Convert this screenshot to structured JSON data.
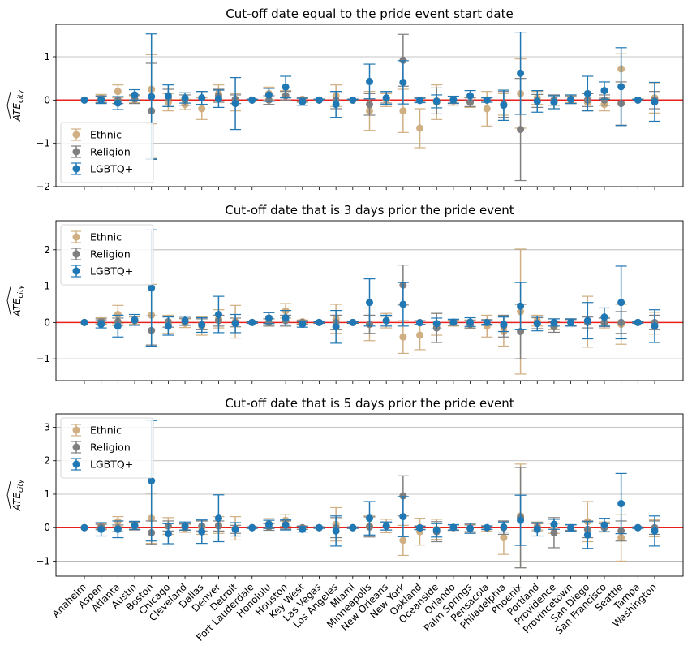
{
  "chart_data": [
    {
      "type": "scatter",
      "title": "Cut-off date equal to the pride event start date",
      "ylabel": "ATE_city",
      "ylim": [
        -2,
        1.75
      ],
      "yticks": [
        -2,
        -1,
        0,
        1
      ],
      "grid": "horizontal",
      "reference_line": {
        "y": 0,
        "color": "#e8201c"
      },
      "legend_position": "lower-left",
      "categories": [
        "Anaheim",
        "Aspen",
        "Atlanta",
        "Austin",
        "Boston",
        "Chicago",
        "Cleveland",
        "Dallas",
        "Denver",
        "Detroit",
        "Fort Lauderdale",
        "Honolulu",
        "Houston",
        "Key West",
        "Las Vegas",
        "Los Angeles",
        "Miami",
        "Minneapolis",
        "New Orleans",
        "New York",
        "Oakland",
        "Oceanside",
        "Orlando",
        "Palm Springs",
        "Pensacola",
        "Philadelphia",
        "Phoenix",
        "Portland",
        "Providence",
        "Provincetown",
        "San Diego",
        "San Francisco",
        "Seattle",
        "Tampa",
        "Washington"
      ],
      "series": [
        {
          "name": "Ethnic",
          "color": "#d0af83",
          "values": [
            0,
            0.05,
            0.2,
            0.02,
            0.25,
            -0.05,
            -0.1,
            -0.2,
            0.15,
            -0.05,
            0,
            0.15,
            0.1,
            0.02,
            0,
            0.1,
            0,
            -0.25,
            0,
            -0.25,
            -0.65,
            -0.05,
            -0.02,
            -0.05,
            -0.2,
            -0.1,
            0.15,
            0.05,
            -0.05,
            0.02,
            -0.05,
            -0.1,
            0.72,
            0,
            0.05
          ],
          "err": [
            0,
            0.08,
            0.15,
            0.08,
            0.8,
            0.2,
            0.12,
            0.25,
            0.2,
            0.2,
            0.02,
            0.15,
            0.12,
            0.05,
            0.02,
            0.25,
            0.02,
            0.45,
            0.15,
            0.5,
            0.45,
            0.4,
            0.1,
            0.12,
            0.4,
            0.25,
            0.8,
            0.15,
            0.15,
            0.08,
            0.2,
            0.15,
            0.35,
            0.02,
            0.35
          ]
        },
        {
          "name": "Religion",
          "color": "#7f7f7f",
          "values": [
            0,
            0.02,
            0,
            0.02,
            -0.25,
            0.05,
            0,
            0.05,
            0.1,
            0.02,
            0,
            0,
            0.1,
            0,
            0,
            0,
            0,
            -0.1,
            0.05,
            0.92,
            0,
            -0.02,
            0,
            -0.05,
            0,
            -0.1,
            -0.68,
            -0.02,
            0,
            0,
            0,
            0,
            -0.08,
            0,
            0
          ],
          "err": [
            0,
            0.08,
            0.08,
            0.1,
            1.1,
            0.2,
            0.12,
            0.15,
            0.15,
            0.1,
            0.02,
            0.1,
            0.1,
            0.05,
            0.02,
            0.2,
            0.02,
            0.25,
            0.12,
            0.6,
            0.05,
            0.3,
            0.08,
            0.1,
            0.05,
            0.3,
            1.18,
            0.15,
            0.12,
            0.08,
            0.15,
            0.12,
            0.5,
            0.02,
            0.2
          ]
        },
        {
          "name": "LGBTQ+",
          "color": "#1f77b4",
          "values": [
            0,
            0,
            -0.07,
            0.12,
            0.08,
            0.1,
            0.05,
            0.05,
            0.03,
            -0.08,
            0,
            0.12,
            0.3,
            -0.04,
            0,
            -0.1,
            0,
            0.43,
            0.05,
            0.41,
            -0.01,
            -0.03,
            0.01,
            0.1,
            0,
            -0.12,
            0.62,
            -0.03,
            -0.05,
            0.02,
            0.15,
            0.22,
            0.31,
            0,
            -0.04
          ]
        },
        {
          "name": "LGBTQ+ error",
          "color": "#1f77b4",
          "err": [
            0,
            0.08,
            0.15,
            0.12,
            1.45,
            0.25,
            0.12,
            0.15,
            0.2,
            0.6,
            0.02,
            0.15,
            0.25,
            0.08,
            0.02,
            0.3,
            0.02,
            0.4,
            0.15,
            0.5,
            0.05,
            0.15,
            0.08,
            0.12,
            0.05,
            0.35,
            0.95,
            0.25,
            0.15,
            0.1,
            0.4,
            0.2,
            0.9,
            0.02,
            0.45
          ]
        }
      ]
    },
    {
      "type": "scatter",
      "title": "Cut-off date that is 3 days prior the pride event",
      "ylabel": "ATE_city",
      "ylim": [
        -1.6,
        2.8
      ],
      "yticks": [
        -1,
        0,
        1,
        2
      ],
      "grid": "horizontal",
      "reference_line": {
        "y": 0,
        "color": "#e8201c"
      },
      "legend_position": "upper-left",
      "categories": [
        "Anaheim",
        "Aspen",
        "Atlanta",
        "Austin",
        "Boston",
        "Chicago",
        "Cleveland",
        "Dallas",
        "Denver",
        "Detroit",
        "Fort Lauderdale",
        "Honolulu",
        "Houston",
        "Key West",
        "Las Vegas",
        "Los Angeles",
        "Miami",
        "Minneapolis",
        "New Orleans",
        "New York",
        "Oakland",
        "Oceanside",
        "Orlando",
        "Palm Springs",
        "Pensacola",
        "Philadelphia",
        "Phoenix",
        "Portland",
        "Providence",
        "Provincetown",
        "San Diego",
        "San Francisco",
        "Seattle",
        "Tampa",
        "Washington"
      ],
      "series": [
        {
          "name": "Ethnic",
          "color": "#d0af83",
          "values": [
            0,
            0.05,
            0.22,
            0.05,
            0.2,
            -0.05,
            -0.02,
            -0.1,
            0.1,
            0.02,
            0,
            0.12,
            0.32,
            0.02,
            0,
            0.1,
            0,
            -0.05,
            0.05,
            -0.4,
            -0.35,
            -0.05,
            -0.02,
            -0.05,
            -0.1,
            -0.25,
            0.3,
            0.05,
            -0.05,
            0,
            0.02,
            -0.02,
            -0.05,
            0,
            -0.02
          ],
          "err": [
            0,
            0.08,
            0.25,
            0.1,
            0.85,
            0.25,
            0.12,
            0.25,
            0.25,
            0.45,
            0.02,
            0.15,
            0.2,
            0.05,
            0.02,
            0.4,
            0.02,
            0.45,
            0.2,
            0.45,
            0.4,
            0.3,
            0.08,
            0.12,
            0.3,
            0.4,
            1.72,
            0.15,
            0.15,
            0.1,
            0.7,
            0.15,
            0.55,
            0.02,
            0.3
          ]
        },
        {
          "name": "Religion",
          "color": "#7f7f7f",
          "values": [
            0,
            0.02,
            0.02,
            0.05,
            -0.22,
            0.02,
            0.02,
            -0.05,
            0.05,
            0,
            0,
            0,
            0.05,
            0,
            0,
            0,
            0,
            -0.05,
            0.05,
            1.03,
            0,
            -0.15,
            0,
            -0.05,
            0,
            -0.1,
            -0.25,
            -0.02,
            -0.12,
            0,
            0,
            0,
            0,
            0,
            0
          ],
          "err": [
            0,
            0.08,
            0.1,
            0.12,
            0.4,
            0.15,
            0.1,
            0.15,
            0.15,
            0.12,
            0.02,
            0.1,
            0.15,
            0.05,
            0.02,
            0.2,
            0.02,
            0.25,
            0.12,
            0.55,
            0.05,
            0.4,
            0.08,
            0.1,
            0.08,
            0.3,
            0.75,
            0.15,
            0.15,
            0.08,
            0.15,
            0.12,
            0.3,
            0.02,
            0.2
          ]
        },
        {
          "name": "LGBTQ+",
          "color": "#1f77b4",
          "values": [
            0,
            -0.05,
            -0.1,
            0.07,
            0.95,
            -0.1,
            0.05,
            -0.07,
            0.22,
            -0.03,
            0,
            0.12,
            0.13,
            -0.05,
            0,
            -0.12,
            0,
            0.55,
            0.05,
            0.5,
            -0.01,
            -0.03,
            0.01,
            0.01,
            0,
            -0.05,
            0.45,
            -0.03,
            0,
            0,
            0.05,
            0.15,
            0.55,
            0,
            -0.1
          ]
        },
        {
          "name": "LGBTQ+ error",
          "color": "#1f77b4",
          "err": [
            0,
            0.1,
            0.3,
            0.15,
            1.6,
            0.25,
            0.12,
            0.2,
            0.5,
            0.25,
            0.02,
            0.15,
            0.2,
            0.08,
            0.02,
            0.45,
            0.02,
            0.65,
            0.15,
            0.6,
            0.05,
            0.15,
            0.08,
            0.12,
            0.05,
            0.2,
            0.65,
            0.2,
            0.1,
            0.1,
            0.5,
            0.25,
            1.0,
            0.02,
            0.45
          ]
        }
      ]
    },
    {
      "type": "scatter",
      "title": "Cut-off date that is 5 days prior the pride event",
      "ylabel": "ATE_city",
      "ylim": [
        -1.45,
        3.4
      ],
      "yticks": [
        -1,
        0,
        1,
        2,
        3
      ],
      "grid": "horizontal",
      "reference_line": {
        "y": 0,
        "color": "#e8201c"
      },
      "legend_position": "upper-left",
      "categories": [
        "Anaheim",
        "Aspen",
        "Atlanta",
        "Austin",
        "Boston",
        "Chicago",
        "Cleveland",
        "Dallas",
        "Denver",
        "Detroit",
        "Fort Lauderdale",
        "Honolulu",
        "Houston",
        "Key West",
        "Las Vegas",
        "Los Angeles",
        "Miami",
        "Minneapolis",
        "New Orleans",
        "New York",
        "Oakland",
        "Oceanside",
        "Orlando",
        "Palm Springs",
        "Pensacola",
        "Philadelphia",
        "Phoenix",
        "Portland",
        "Providence",
        "Provincetown",
        "San Diego",
        "San Francisco",
        "Seattle",
        "Tampa",
        "Washington"
      ],
      "series": [
        {
          "name": "Ethnic",
          "color": "#d0af83",
          "values": [
            0,
            0.05,
            0.18,
            0.05,
            0.28,
            0.05,
            -0.02,
            0,
            0.08,
            -0.02,
            0,
            0.12,
            0.22,
            0,
            0,
            0.1,
            0,
            0.05,
            0.05,
            -0.38,
            -0.12,
            -0.05,
            0,
            -0.02,
            -0.02,
            -0.3,
            0.35,
            0.05,
            -0.02,
            0,
            0.18,
            0.02,
            -0.3,
            0,
            -0.02
          ],
          "err": [
            0,
            0.08,
            0.15,
            0.1,
            0.75,
            0.25,
            0.12,
            0.2,
            0.25,
            0.35,
            0.02,
            0.15,
            0.18,
            0.05,
            0.02,
            0.5,
            0.02,
            0.3,
            0.2,
            0.45,
            0.4,
            0.3,
            0.08,
            0.12,
            0.08,
            0.5,
            1.55,
            0.12,
            0.15,
            0.08,
            0.6,
            0.15,
            0.7,
            0.02,
            0.25
          ]
        },
        {
          "name": "Religion",
          "color": "#7f7f7f",
          "values": [
            0,
            0.02,
            -0.02,
            0.05,
            -0.15,
            0.05,
            0.02,
            0.05,
            0.05,
            -0.05,
            0,
            0.02,
            0.08,
            0,
            0,
            0,
            0,
            0.02,
            0.05,
            0.95,
            0,
            -0.12,
            0,
            -0.02,
            0,
            0,
            0.3,
            0,
            -0.15,
            0,
            -0.05,
            0,
            -0.1,
            0,
            0
          ],
          "err": [
            0,
            0.08,
            0.1,
            0.12,
            0.35,
            0.15,
            0.1,
            0.15,
            0.15,
            0.12,
            0.02,
            0.1,
            0.12,
            0.05,
            0.02,
            0.3,
            0.02,
            0.3,
            0.12,
            0.6,
            0.05,
            0.3,
            0.08,
            0.1,
            0.05,
            0.2,
            1.5,
            0.12,
            0.45,
            0.08,
            0.25,
            0.12,
            0.3,
            0.02,
            0.2
          ]
        },
        {
          "name": "LGBTQ+",
          "color": "#1f77b4",
          "values": [
            0,
            -0.05,
            -0.05,
            0.07,
            1.4,
            -0.18,
            0.05,
            -0.12,
            0.28,
            -0.05,
            0,
            0.1,
            0.08,
            -0.05,
            0,
            -0.1,
            0,
            0.28,
            0.05,
            0.33,
            -0.01,
            -0.08,
            0.01,
            -0.02,
            0,
            0.02,
            0.22,
            -0.05,
            0.1,
            -0.01,
            -0.22,
            0.08,
            0.72,
            0,
            -0.1
          ]
        },
        {
          "name": "LGBTQ+ error",
          "color": "#1f77b4",
          "err": [
            0,
            0.2,
            0.25,
            0.12,
            1.8,
            0.3,
            0.12,
            0.35,
            0.7,
            0.2,
            0.02,
            0.12,
            0.15,
            0.08,
            0.02,
            0.45,
            0.02,
            0.5,
            0.12,
            0.6,
            0.05,
            0.2,
            0.08,
            0.15,
            0.05,
            0.15,
            0.75,
            0.2,
            0.15,
            0.1,
            0.4,
            0.2,
            0.9,
            0.02,
            0.45
          ]
        }
      ]
    }
  ]
}
